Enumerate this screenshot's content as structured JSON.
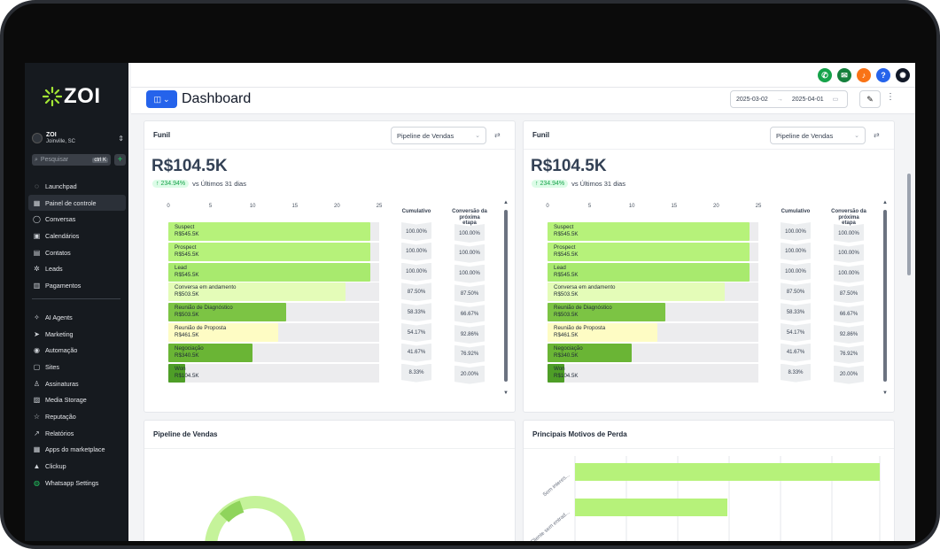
{
  "sidebar": {
    "logo": "ZOI",
    "account": {
      "name": "ZOI",
      "location": "Joinville, SC"
    },
    "search": {
      "placeholder": "Pesquisar",
      "shortcut": "ctrl K"
    },
    "nav_primary": [
      {
        "label": "Launchpad",
        "icon": "rocket-icon"
      },
      {
        "label": "Painel de controle",
        "icon": "grid-icon",
        "active": true
      },
      {
        "label": "Conversas",
        "icon": "chat-icon"
      },
      {
        "label": "Calendários",
        "icon": "calendar-icon"
      },
      {
        "label": "Contatos",
        "icon": "contacts-icon"
      },
      {
        "label": "Leads",
        "icon": "network-icon"
      },
      {
        "label": "Pagamentos",
        "icon": "invoice-icon"
      }
    ],
    "nav_secondary": [
      {
        "label": "AI Agents",
        "icon": "sparkle-icon"
      },
      {
        "label": "Marketing",
        "icon": "send-icon"
      },
      {
        "label": "Automação",
        "icon": "automation-icon"
      },
      {
        "label": "Sites",
        "icon": "sites-icon"
      },
      {
        "label": "Assinaturas",
        "icon": "badge-icon"
      },
      {
        "label": "Media Storage",
        "icon": "image-icon"
      },
      {
        "label": "Reputação",
        "icon": "star-icon"
      },
      {
        "label": "Relatórios",
        "icon": "trend-icon"
      },
      {
        "label": "Apps do marketplace",
        "icon": "apps-icon"
      },
      {
        "label": "Clickup",
        "icon": "clickup-icon"
      },
      {
        "label": "Whatsapp Settings",
        "icon": "whatsapp-icon"
      }
    ]
  },
  "topbar": {
    "icons": [
      {
        "name": "phone-icon",
        "color": "#16a34a",
        "glyph": "✆"
      },
      {
        "name": "megaphone-icon",
        "color": "#15803d",
        "glyph": "✉"
      },
      {
        "name": "bell-icon",
        "color": "#f97316",
        "glyph": "♪"
      },
      {
        "name": "help-icon",
        "color": "#2563eb",
        "glyph": "?"
      },
      {
        "name": "profile-icon",
        "color": "#111827",
        "glyph": "✺"
      }
    ]
  },
  "header": {
    "title": "Dashboard",
    "date_start": "2025-03-02",
    "date_end": "2025-04-01"
  },
  "funnel_cards": [
    {
      "title": "Funil",
      "pipeline": "Pipeline de Vendas",
      "total": "R$104.5K",
      "growth": "234.94%",
      "growth_label": "vs Últimos 31 dias"
    },
    {
      "title": "Funil",
      "pipeline": "Pipeline de Vendas",
      "total": "R$104.5K",
      "growth": "234.94%",
      "growth_label": "vs Últimos 31 dias"
    }
  ],
  "chart_data": {
    "type": "bar",
    "axis_ticks": [
      "0",
      "5",
      "10",
      "15",
      "20",
      "25"
    ],
    "xlim": [
      0,
      25
    ],
    "col_cumulative": "Cumulativo",
    "col_conversion": "Conversão da próxima etapa",
    "stages": [
      {
        "name": "Suspect",
        "amount": "R$545.5K",
        "value": 24,
        "color": "#b6f27a",
        "cumulative": "100.00%",
        "conversion": "100.00%"
      },
      {
        "name": "Prospect",
        "amount": "R$545.5K",
        "value": 24,
        "color": "#b6f27a",
        "cumulative": "100.00%",
        "conversion": "100.00%"
      },
      {
        "name": "Lead",
        "amount": "R$545.5K",
        "value": 24,
        "color": "#a8ea6e",
        "cumulative": "100.00%",
        "conversion": "100.00%"
      },
      {
        "name": "Conversa em andamento",
        "amount": "R$503.5K",
        "value": 21,
        "color": "#e4fcb8",
        "cumulative": "87.50%",
        "conversion": "87.50%"
      },
      {
        "name": "Reunião de Diagnóstico",
        "amount": "R$503.5K",
        "value": 14,
        "color": "#7cc444",
        "cumulative": "58.33%",
        "conversion": "66.67%"
      },
      {
        "name": "Reunião de Proposta",
        "amount": "R$461.5K",
        "value": 13,
        "color": "#fefcc4",
        "cumulative": "54.17%",
        "conversion": "92.86%"
      },
      {
        "name": "Negociação",
        "amount": "R$340.5K",
        "value": 10,
        "color": "#6ab535",
        "cumulative": "41.67%",
        "conversion": "76.92%"
      },
      {
        "name": "Won",
        "amount": "R$104.5K",
        "value": 2,
        "color": "#4e9e27",
        "cumulative": "8.33%",
        "conversion": "20.00%"
      }
    ]
  },
  "bottom_cards": [
    {
      "title": "Pipeline de Vendas"
    },
    {
      "title": "Principais Motivos de Perda",
      "reasons": [
        "Sem interes...",
        "Cliente sem entrad..."
      ],
      "values": [
        100,
        50
      ]
    }
  ]
}
